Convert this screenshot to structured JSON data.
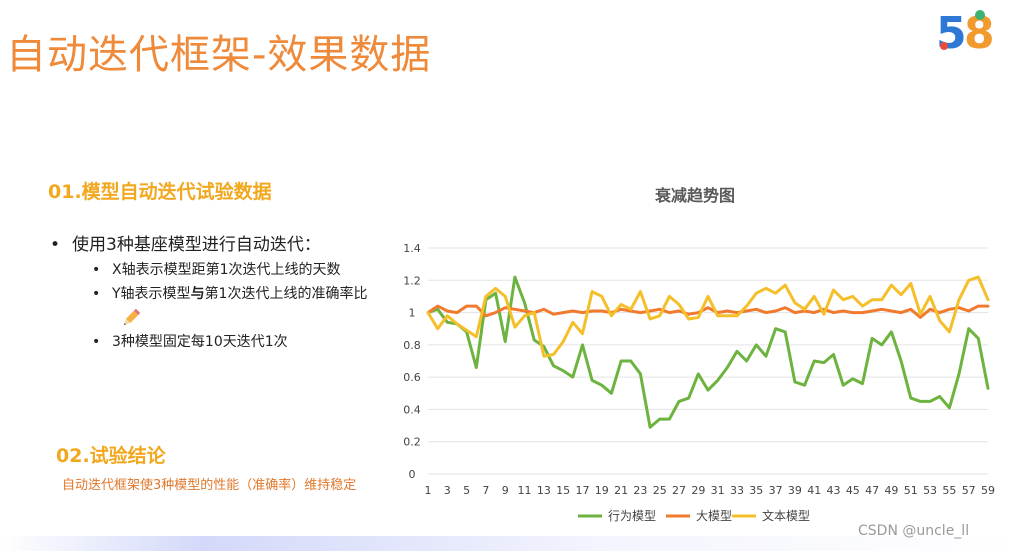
{
  "slide": {
    "title": "自动迭代框架-效果数据",
    "logo_text": "58"
  },
  "section1": {
    "title": "01.模型自动迭代试验数据",
    "bullet": "使用3种基座模型进行自动迭代：",
    "sub_items": [
      {
        "text": "X轴表示模型距第1次迭代上线的天数"
      },
      {
        "pre": "Y轴表示模型",
        "bold": "与",
        "post": "第1次迭代上线的准确率比"
      },
      {
        "text": "3种模型固定每10天迭代1次"
      }
    ],
    "pencil_icon": "pencil-icon"
  },
  "section2": {
    "title": "02.试验结论",
    "conclusion": "自动迭代框架使3种模型的性能（准确率）维持稳定"
  },
  "footer": {
    "watermark": "CSDN @uncle_ll"
  },
  "chart_data": {
    "type": "line",
    "title": "衰减趋势图",
    "xlabel": "",
    "ylabel": "",
    "x": [
      1,
      2,
      3,
      4,
      5,
      6,
      7,
      8,
      9,
      10,
      11,
      12,
      13,
      14,
      15,
      16,
      17,
      18,
      19,
      20,
      21,
      22,
      23,
      24,
      25,
      26,
      27,
      28,
      29,
      30,
      31,
      32,
      33,
      34,
      35,
      36,
      37,
      38,
      39,
      40,
      41,
      42,
      43,
      44,
      45,
      46,
      47,
      48,
      49,
      50,
      51,
      52,
      53,
      54,
      55,
      56,
      57,
      58,
      59
    ],
    "x_tick_labels": [
      "1",
      "3",
      "5",
      "7",
      "9",
      "11",
      "13",
      "15",
      "17",
      "19",
      "21",
      "23",
      "25",
      "27",
      "29",
      "31",
      "33",
      "35",
      "37",
      "39",
      "41",
      "43",
      "45",
      "47",
      "49",
      "51",
      "53",
      "55",
      "57",
      "59"
    ],
    "ylim": [
      0,
      1.4
    ],
    "y_ticks": [
      "0",
      "0.2",
      "0.4",
      "0.6",
      "0.8",
      "1",
      "1.2",
      "1.4"
    ],
    "grid": true,
    "legend_position": "bottom",
    "series": [
      {
        "name": "行为模型",
        "color": "#6DB33F",
        "values": [
          1.0,
          1.02,
          0.94,
          0.93,
          0.88,
          0.66,
          1.08,
          1.12,
          0.82,
          1.22,
          1.06,
          0.83,
          0.79,
          0.67,
          0.64,
          0.6,
          0.8,
          0.58,
          0.55,
          0.5,
          0.7,
          0.7,
          0.62,
          0.29,
          0.34,
          0.34,
          0.45,
          0.47,
          0.62,
          0.52,
          0.58,
          0.66,
          0.76,
          0.7,
          0.8,
          0.73,
          0.9,
          0.88,
          0.57,
          0.55,
          0.7,
          0.69,
          0.74,
          0.55,
          0.59,
          0.56,
          0.84,
          0.8,
          0.88,
          0.7,
          0.47,
          0.45,
          0.45,
          0.48,
          0.41,
          0.62,
          0.9,
          0.84,
          0.53
        ]
      },
      {
        "name": "大模型",
        "color": "#F07A2E",
        "values": [
          1.0,
          1.04,
          1.01,
          1.0,
          1.04,
          1.04,
          0.98,
          1.0,
          1.03,
          1.02,
          1.01,
          1.0,
          1.02,
          0.99,
          1.0,
          1.01,
          1.0,
          1.01,
          1.01,
          1.0,
          1.02,
          1.01,
          1.0,
          1.01,
          1.02,
          1.0,
          1.01,
          0.99,
          1.0,
          1.03,
          1.0,
          1.01,
          1.0,
          1.01,
          1.02,
          1.0,
          1.01,
          1.03,
          1.0,
          1.01,
          1.0,
          1.02,
          1.0,
          1.01,
          1.0,
          1.0,
          1.01,
          1.02,
          1.01,
          1.0,
          1.02,
          0.97,
          1.02,
          1.0,
          1.02,
          1.03,
          1.01,
          1.04,
          1.04
        ]
      },
      {
        "name": "文本模型",
        "color": "#F5BF2A",
        "values": [
          1.0,
          0.9,
          0.98,
          0.93,
          0.89,
          0.85,
          1.1,
          1.15,
          1.1,
          0.91,
          0.98,
          1.0,
          0.73,
          0.74,
          0.82,
          0.94,
          0.87,
          1.13,
          1.1,
          0.98,
          1.05,
          1.02,
          1.13,
          0.96,
          0.98,
          1.1,
          1.05,
          0.96,
          0.97,
          1.1,
          0.98,
          0.98,
          0.98,
          1.04,
          1.12,
          1.15,
          1.12,
          1.17,
          1.06,
          1.02,
          1.1,
          0.99,
          1.14,
          1.08,
          1.1,
          1.04,
          1.08,
          1.08,
          1.17,
          1.11,
          1.18,
          0.99,
          1.1,
          0.95,
          0.88,
          1.08,
          1.2,
          1.22,
          1.08
        ]
      }
    ]
  }
}
